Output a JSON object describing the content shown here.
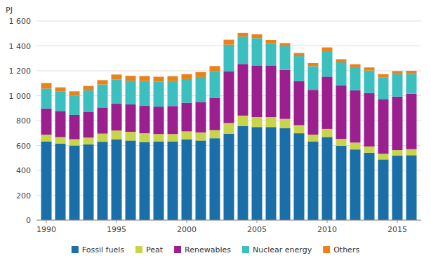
{
  "chart_data": {
    "type": "bar",
    "stacked": true,
    "y_label": "PJ",
    "x": [
      1990,
      1991,
      1992,
      1993,
      1994,
      1995,
      1996,
      1997,
      1998,
      1999,
      2000,
      2001,
      2002,
      2003,
      2004,
      2005,
      2006,
      2007,
      2008,
      2009,
      2010,
      2011,
      2012,
      2013,
      2014,
      2015,
      2016
    ],
    "series": [
      {
        "name": "Fossil fuels",
        "color": "#1a6fa8",
        "values": [
          632,
          615,
          600,
          608,
          630,
          650,
          640,
          628,
          632,
          632,
          648,
          640,
          658,
          695,
          755,
          748,
          748,
          738,
          698,
          632,
          668,
          598,
          568,
          542,
          488,
          518,
          522
        ]
      },
      {
        "name": "Peat",
        "color": "#c8d44a",
        "values": [
          55,
          52,
          50,
          55,
          65,
          70,
          70,
          70,
          60,
          60,
          65,
          65,
          65,
          85,
          85,
          80,
          80,
          75,
          65,
          55,
          65,
          55,
          55,
          50,
          45,
          45,
          48
        ]
      },
      {
        "name": "Renewables",
        "color": "#9b1f8e",
        "values": [
          210,
          210,
          195,
          205,
          210,
          215,
          220,
          220,
          220,
          225,
          230,
          245,
          260,
          415,
          415,
          415,
          415,
          395,
          355,
          360,
          420,
          430,
          420,
          430,
          440,
          430,
          445
        ]
      },
      {
        "name": "Nuclear energy",
        "color": "#3bbfbf",
        "values": [
          160,
          155,
          155,
          175,
          185,
          195,
          190,
          200,
          200,
          200,
          190,
          200,
          215,
          215,
          220,
          220,
          175,
          190,
          200,
          190,
          205,
          185,
          185,
          180,
          175,
          180,
          160
        ]
      },
      {
        "name": "Others",
        "color": "#e8821a",
        "values": [
          45,
          35,
          35,
          35,
          35,
          40,
          40,
          40,
          40,
          40,
          40,
          40,
          40,
          40,
          30,
          30,
          30,
          25,
          25,
          25,
          30,
          25,
          25,
          25,
          25,
          25,
          25
        ]
      }
    ],
    "xlim": [
      1989.3,
      2016.7
    ],
    "xticks": [
      1990,
      1995,
      2000,
      2005,
      2010,
      2015
    ],
    "ylim": [
      0,
      1600
    ],
    "yticks": [
      0,
      200,
      400,
      600,
      800,
      {
        "value": 1000,
        "label": "1 000"
      },
      {
        "value": 1200,
        "label": "1 200"
      },
      {
        "value": 1400,
        "label": "1 400"
      },
      {
        "value": 1600,
        "label": "1 600"
      }
    ],
    "grid": true,
    "legend": "bottom"
  }
}
